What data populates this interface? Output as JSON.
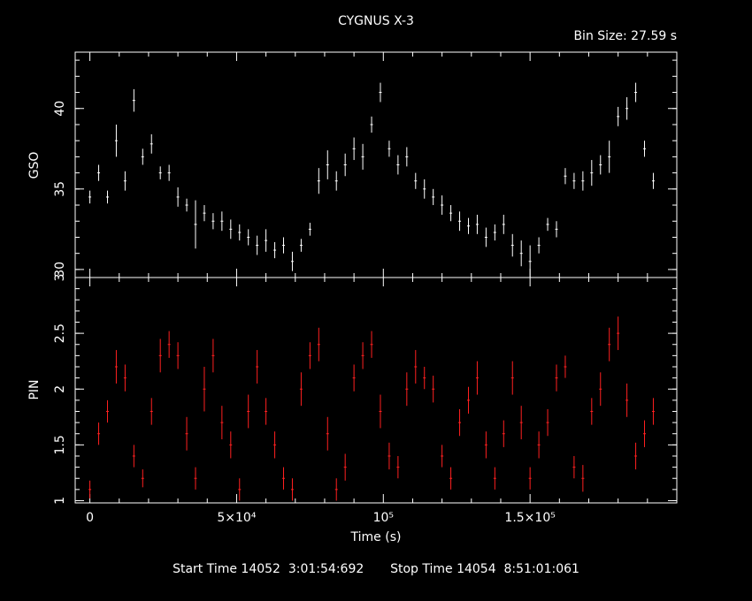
{
  "chart_data": [
    {
      "type": "line",
      "title": "CYGNUS X-3",
      "subtitle": "Bin Size: 27.59 s",
      "xlabel": "Time (s)",
      "ylabel": "GSO",
      "xlim": [
        -5000,
        200000
      ],
      "ylim": [
        29.5,
        43.5
      ],
      "yticks": [
        30,
        35,
        40
      ],
      "ytick_labels": [
        "30",
        "35",
        "40"
      ],
      "color": "#ffffff",
      "series": [
        {
          "x": [
            0,
            3000,
            6000,
            9000,
            12000,
            15000,
            18000,
            21000,
            24000,
            27000,
            30000,
            33000,
            36000,
            39000,
            42000,
            45000,
            48000,
            51000,
            54000,
            57000,
            60000,
            63000,
            66000,
            69000,
            72000,
            75000,
            78000,
            81000,
            84000,
            87000,
            90000,
            93000,
            96000,
            99000,
            102000,
            105000,
            108000,
            111000,
            114000,
            117000,
            120000,
            123000,
            126000,
            129000,
            132000,
            135000,
            138000,
            141000,
            144000,
            147000,
            150000,
            153000,
            156000,
            159000,
            162000,
            165000,
            168000,
            171000,
            174000,
            177000,
            180000,
            183000,
            186000,
            189000,
            192000
          ],
          "values": [
            34.5,
            36.0,
            34.5,
            38.0,
            35.5,
            40.5,
            37.0,
            37.8,
            36.0,
            36.0,
            34.5,
            34.0,
            32.8,
            33.5,
            33.0,
            33.0,
            32.5,
            32.3,
            32.0,
            31.5,
            31.8,
            31.2,
            31.5,
            30.5,
            31.5,
            32.5,
            35.5,
            36.5,
            35.5,
            36.5,
            37.5,
            37.0,
            39.0,
            41.0,
            37.5,
            36.5,
            37.0,
            35.5,
            35.0,
            34.5,
            34.0,
            33.5,
            33.0,
            32.7,
            32.8,
            32.0,
            32.3,
            32.8,
            31.5,
            31.0,
            30.5,
            31.5,
            32.8,
            32.5,
            35.8,
            35.5,
            35.5,
            36.0,
            36.5,
            37.0,
            39.5,
            40.0,
            41.0,
            37.5,
            35.5
          ],
          "spread": [
            0.4,
            0.5,
            0.4,
            1.0,
            0.6,
            0.7,
            0.5,
            0.6,
            0.4,
            0.5,
            0.6,
            0.4,
            1.5,
            0.5,
            0.5,
            0.6,
            0.6,
            0.5,
            0.5,
            0.6,
            0.7,
            0.5,
            0.5,
            0.6,
            0.4,
            0.4,
            0.8,
            0.9,
            0.6,
            0.7,
            0.7,
            0.8,
            0.5,
            0.6,
            0.5,
            0.6,
            0.6,
            0.5,
            0.6,
            0.5,
            0.6,
            0.5,
            0.6,
            0.5,
            0.6,
            0.6,
            0.5,
            0.6,
            0.7,
            0.8,
            1.0,
            0.5,
            0.4,
            0.5,
            0.5,
            0.5,
            0.6,
            0.8,
            0.6,
            1.0,
            0.6,
            0.7,
            0.6,
            0.5,
            0.5
          ]
        }
      ]
    },
    {
      "type": "line",
      "xlabel": "Time (s)",
      "ylabel": "PIN",
      "xlim": [
        -5000,
        200000
      ],
      "ylim": [
        0.98,
        3.0
      ],
      "yticks": [
        1,
        1.5,
        2,
        2.5,
        3
      ],
      "ytick_labels": [
        "1",
        "1.5",
        "2",
        "2.5",
        "3"
      ],
      "xticks": [
        0,
        50000,
        100000,
        150000
      ],
      "xtick_labels": [
        "0",
        "5×10⁴",
        "10⁵",
        "1.5×10⁵"
      ],
      "color": "#ff2020",
      "series": [
        {
          "x": [
            0,
            3000,
            6000,
            9000,
            12000,
            15000,
            18000,
            21000,
            24000,
            27000,
            30000,
            33000,
            36000,
            39000,
            42000,
            45000,
            48000,
            51000,
            54000,
            57000,
            60000,
            63000,
            66000,
            69000,
            72000,
            75000,
            78000,
            81000,
            84000,
            87000,
            90000,
            93000,
            96000,
            99000,
            102000,
            105000,
            108000,
            111000,
            114000,
            117000,
            120000,
            123000,
            126000,
            129000,
            132000,
            135000,
            138000,
            141000,
            144000,
            147000,
            150000,
            153000,
            156000,
            159000,
            162000,
            165000,
            168000,
            171000,
            174000,
            177000,
            180000,
            183000,
            186000,
            189000,
            192000
          ],
          "values": [
            1.1,
            1.6,
            1.8,
            2.2,
            2.1,
            1.4,
            1.2,
            1.8,
            2.3,
            2.4,
            2.3,
            1.6,
            1.2,
            2.0,
            2.3,
            1.7,
            1.5,
            1.1,
            1.8,
            2.2,
            1.8,
            1.5,
            1.2,
            1.1,
            2.0,
            2.3,
            2.4,
            1.6,
            1.1,
            1.3,
            2.1,
            2.3,
            2.4,
            1.8,
            1.4,
            1.3,
            2.0,
            2.2,
            2.1,
            2.0,
            1.4,
            1.2,
            1.7,
            1.9,
            2.1,
            1.5,
            1.2,
            1.6,
            2.1,
            1.7,
            1.2,
            1.5,
            1.7,
            2.1,
            2.2,
            1.3,
            1.2,
            1.8,
            2.0,
            2.4,
            2.5,
            1.9,
            1.4,
            1.6,
            1.8
          ],
          "spread": [
            0.08,
            0.1,
            0.1,
            0.15,
            0.12,
            0.1,
            0.08,
            0.12,
            0.15,
            0.12,
            0.12,
            0.15,
            0.1,
            0.2,
            0.15,
            0.15,
            0.12,
            0.1,
            0.15,
            0.15,
            0.12,
            0.12,
            0.1,
            0.1,
            0.15,
            0.12,
            0.15,
            0.15,
            0.1,
            0.12,
            0.12,
            0.12,
            0.12,
            0.15,
            0.12,
            0.1,
            0.15,
            0.15,
            0.1,
            0.12,
            0.1,
            0.1,
            0.12,
            0.12,
            0.15,
            0.12,
            0.1,
            0.12,
            0.15,
            0.15,
            0.1,
            0.12,
            0.12,
            0.12,
            0.1,
            0.1,
            0.12,
            0.12,
            0.15,
            0.15,
            0.15,
            0.15,
            0.12,
            0.12,
            0.12
          ]
        }
      ]
    }
  ],
  "footer": {
    "start_label": "Start Time 14052  3:01:54:692",
    "stop_label": "Stop Time 14054  8:51:01:061"
  }
}
